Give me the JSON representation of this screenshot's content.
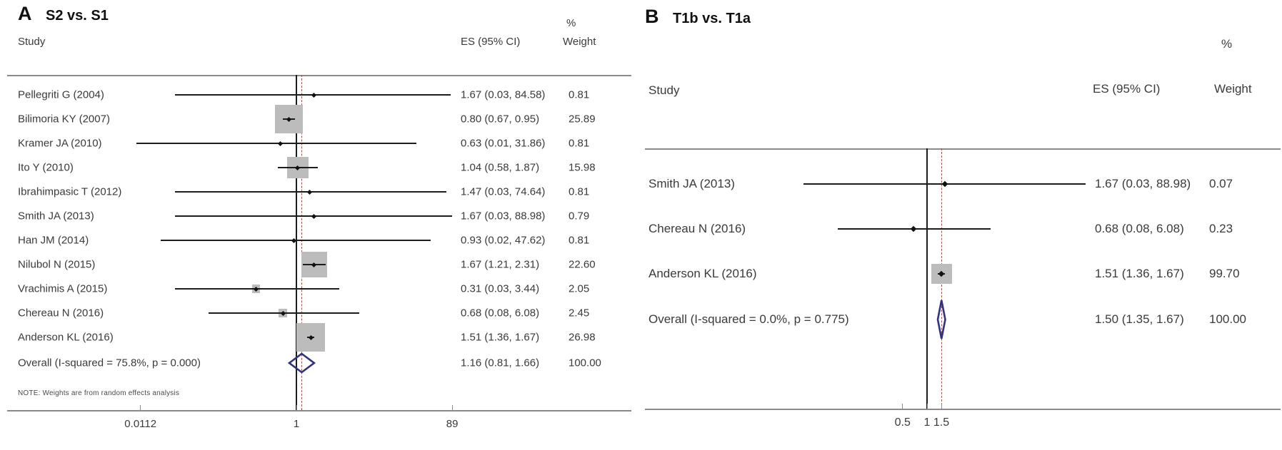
{
  "figure": {
    "kind": "meta-analysis forest plots",
    "panel_count": 2
  },
  "colors": {
    "text": "#3a3a3a",
    "title": "#111111",
    "ci_line": "#1c1c1c",
    "marker": "#111111",
    "square": "#bcbcbc",
    "diamond_outline": "#32327e",
    "ref_line": "#1c1c1c",
    "overall_dashed_line": "#9c564e",
    "axis_line": "#8a8a8a"
  },
  "chart_data": [
    {
      "type": "forest",
      "panel": "A",
      "title": "S2 vs. S1",
      "xscale": "log",
      "columns": {
        "study": "Study",
        "es": "ES (95% CI)",
        "pct": "%",
        "weight": "Weight"
      },
      "ref_line_value": 1,
      "ticks": [
        {
          "label": "0.0112",
          "value": 0.0112
        },
        {
          "label": "1",
          "value": 1
        },
        {
          "label": "89",
          "value": 89
        }
      ],
      "studies": [
        {
          "study": "Pellegriti G (2004)",
          "es": 1.67,
          "lo": 0.03,
          "hi": 84.58,
          "weight": 0.81,
          "es_label": "1.67 (0.03, 84.58)",
          "weight_label": "0.81"
        },
        {
          "study": "Bilimoria KY (2007)",
          "es": 0.8,
          "lo": 0.67,
          "hi": 0.95,
          "weight": 25.89,
          "es_label": "0.80 (0.67, 0.95)",
          "weight_label": "25.89"
        },
        {
          "study": "Kramer JA (2010)",
          "es": 0.63,
          "lo": 0.01,
          "hi": 31.86,
          "weight": 0.81,
          "es_label": "0.63 (0.01, 31.86)",
          "weight_label": "0.81"
        },
        {
          "study": "Ito Y (2010)",
          "es": 1.04,
          "lo": 0.58,
          "hi": 1.87,
          "weight": 15.98,
          "es_label": "1.04 (0.58, 1.87)",
          "weight_label": "15.98"
        },
        {
          "study": "Ibrahimpasic T (2012)",
          "es": 1.47,
          "lo": 0.03,
          "hi": 74.64,
          "weight": 0.81,
          "es_label": "1.47 (0.03, 74.64)",
          "weight_label": "0.81"
        },
        {
          "study": "Smith JA (2013)",
          "es": 1.67,
          "lo": 0.03,
          "hi": 88.98,
          "weight": 0.79,
          "es_label": "1.67 (0.03, 88.98)",
          "weight_label": "0.79"
        },
        {
          "study": "Han JM (2014)",
          "es": 0.93,
          "lo": 0.02,
          "hi": 47.62,
          "weight": 0.81,
          "es_label": "0.93 (0.02, 47.62)",
          "weight_label": "0.81"
        },
        {
          "study": "Nilubol N (2015)",
          "es": 1.67,
          "lo": 1.21,
          "hi": 2.31,
          "weight": 22.6,
          "es_label": "1.67 (1.21, 2.31)",
          "weight_label": "22.60"
        },
        {
          "study": "Vrachimis A (2015)",
          "es": 0.31,
          "lo": 0.03,
          "hi": 3.44,
          "weight": 2.05,
          "es_label": "0.31 (0.03, 3.44)",
          "weight_label": "2.05"
        },
        {
          "study": "Chereau N (2016)",
          "es": 0.68,
          "lo": 0.08,
          "hi": 6.08,
          "weight": 2.45,
          "es_label": "0.68 (0.08, 6.08)",
          "weight_label": "2.45"
        },
        {
          "study": "Anderson KL (2016)",
          "es": 1.51,
          "lo": 1.36,
          "hi": 1.67,
          "weight": 26.98,
          "es_label": "1.51 (1.36, 1.67)",
          "weight_label": "26.98"
        }
      ],
      "overall": {
        "label": "Overall  (I-squared = 75.8%, p = 0.000)",
        "es": 1.16,
        "lo": 0.81,
        "hi": 1.66,
        "es_label": "1.16 (0.81, 1.66)",
        "weight_label": "100.00"
      },
      "note": "NOTE: Weights are from random effects analysis"
    },
    {
      "type": "forest",
      "panel": "B",
      "title": "T1b vs. T1a",
      "xscale": "log",
      "columns": {
        "study": "Study",
        "es": "ES (95% CI)",
        "pct": "%",
        "weight": "Weight"
      },
      "ref_line_value": 1,
      "ticks": [
        {
          "label": "0.5",
          "value": 0.5
        },
        {
          "label": "1",
          "value": 1
        },
        {
          "label": "1.5",
          "value": 1.5
        }
      ],
      "studies": [
        {
          "study": "Smith JA (2013)",
          "es": 1.67,
          "lo": 0.03,
          "hi": 88.98,
          "weight": 0.07,
          "es_label": "1.67 (0.03, 88.98)",
          "weight_label": "0.07"
        },
        {
          "study": "Chereau N (2016)",
          "es": 0.68,
          "lo": 0.08,
          "hi": 6.08,
          "weight": 0.23,
          "es_label": "0.68 (0.08, 6.08)",
          "weight_label": "0.23"
        },
        {
          "study": "Anderson KL (2016)",
          "es": 1.51,
          "lo": 1.36,
          "hi": 1.67,
          "weight": 99.7,
          "es_label": "1.51 (1.36, 1.67)",
          "weight_label": "99.70"
        }
      ],
      "overall": {
        "label": "Overall  (I-squared = 0.0%, p = 0.775)",
        "es": 1.5,
        "lo": 1.35,
        "hi": 1.67,
        "es_label": "1.50 (1.35, 1.67)",
        "weight_label": "100.00"
      },
      "note": null
    }
  ]
}
